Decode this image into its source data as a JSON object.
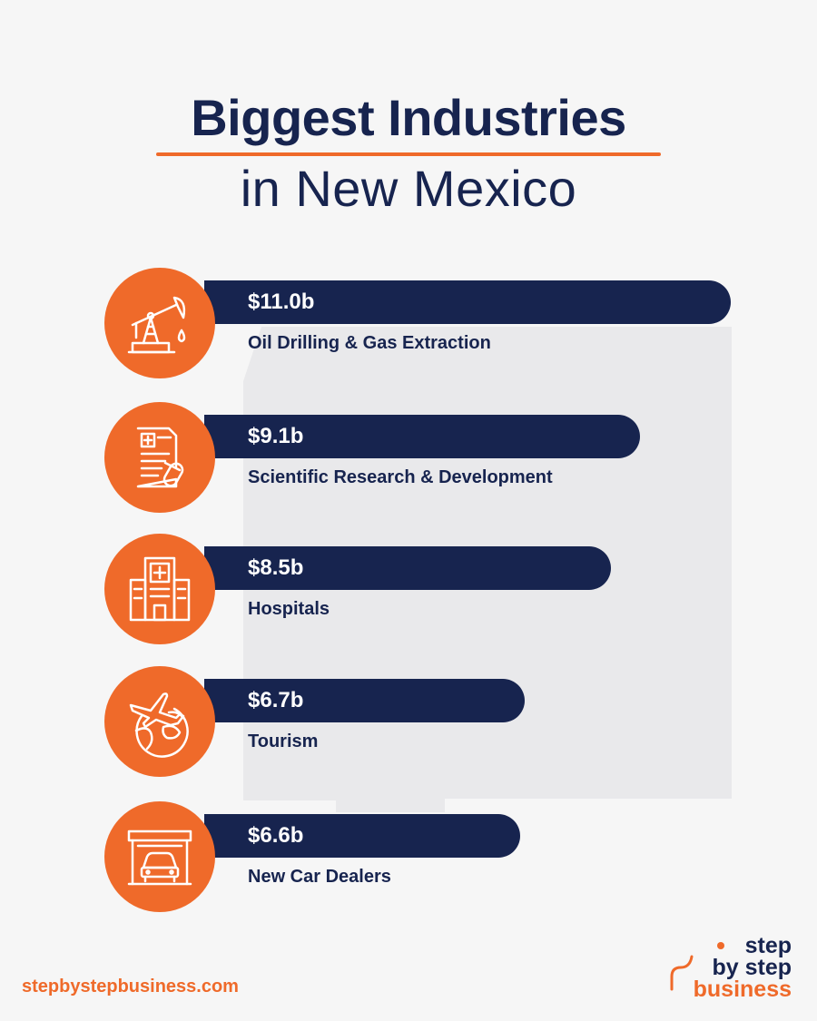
{
  "header": {
    "title_line1": "Biggest Industries",
    "title_line2": "in New Mexico"
  },
  "chart_data": {
    "type": "bar",
    "orientation": "horizontal",
    "title": "Biggest Industries in New Mexico",
    "categories": [
      "Oil Drilling & Gas Extraction",
      "Scientific Research & Development",
      "Hospitals",
      "Tourism",
      "New Car Dealers"
    ],
    "values": [
      11.0,
      9.1,
      8.5,
      6.7,
      6.6
    ],
    "value_labels": [
      "$11.0b",
      "$9.1b",
      "$8.5b",
      "$6.7b",
      "$6.6b"
    ],
    "icons": [
      "oil-pump-icon",
      "medical-research-icon",
      "hospital-icon",
      "globe-plane-icon",
      "car-garage-icon"
    ],
    "colors": {
      "bar": "#17244f",
      "icon_circle": "#ef6a2a",
      "accent": "#ef6a2a"
    },
    "grid": false
  },
  "footer": {
    "url": "stepbystepbusiness.com",
    "logo_line1": "step",
    "logo_line2": "by step",
    "logo_line3": "business"
  }
}
